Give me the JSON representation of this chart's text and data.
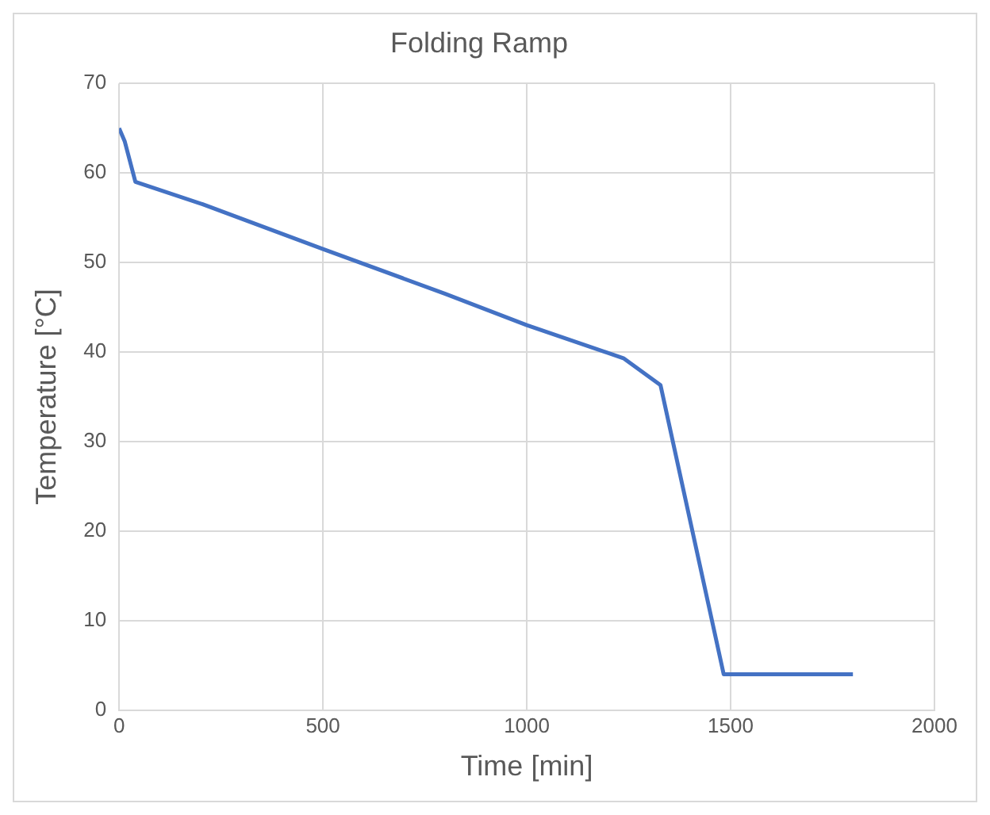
{
  "chart_data": {
    "type": "line",
    "title": "Folding Ramp",
    "xlabel": "Time [min]",
    "ylabel": "Temperature [°C]",
    "x": [
      0,
      14,
      40,
      205,
      500,
      800,
      1000,
      1237,
      1328,
      1483,
      1800
    ],
    "series": [
      {
        "color": "#4472c4",
        "values": [
          65,
          63.5,
          59,
          56.5,
          51.5,
          46.5,
          43,
          39.3,
          36.3,
          4,
          4
        ]
      }
    ],
    "xlim": [
      0,
      2000
    ],
    "xticks": [
      0,
      500,
      1000,
      1500,
      2000
    ],
    "ylim": [
      0,
      70
    ],
    "yticks": [
      0,
      10,
      20,
      30,
      40,
      50,
      60,
      70
    ],
    "grid": true,
    "legend": false,
    "marker": "none",
    "line_style": "solid"
  }
}
